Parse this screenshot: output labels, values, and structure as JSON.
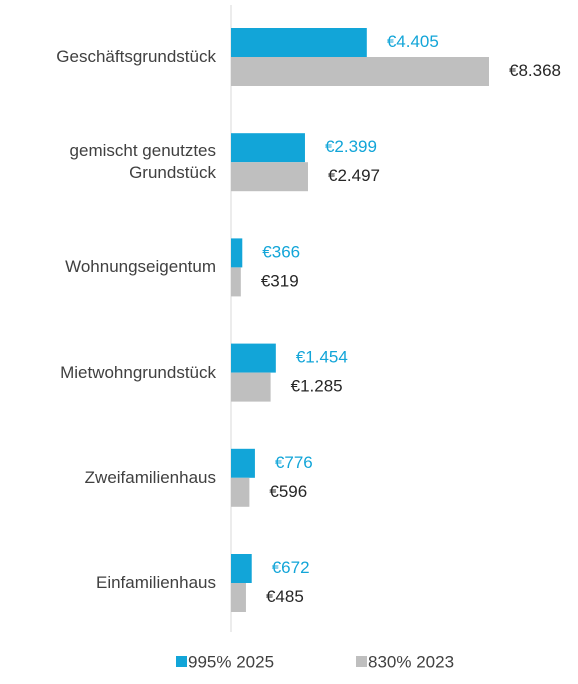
{
  "chart_data": {
    "type": "hbar",
    "categories": [
      "Geschäftsgrundstück",
      "gemischt genutztes Grundstück",
      "Wohnungseigentum",
      "Mietwohngrundstück",
      "Zweifamilienhaus",
      "Einfamilienhaus"
    ],
    "series": [
      {
        "name": "995% 2025",
        "color": "#12a5d8",
        "values": [
          4405,
          2399,
          366,
          1454,
          776,
          672
        ],
        "value_labels": [
          "€4.405",
          "€2.399",
          "€366",
          "€1.454",
          "€776",
          "€672"
        ]
      },
      {
        "name": "830% 2023",
        "color": "#bfbfbf",
        "values": [
          8368,
          2497,
          319,
          1285,
          596,
          485
        ],
        "value_labels": [
          "€8.368",
          "€2.497",
          "€319",
          "€1.285",
          "€596",
          "€485"
        ]
      }
    ]
  }
}
